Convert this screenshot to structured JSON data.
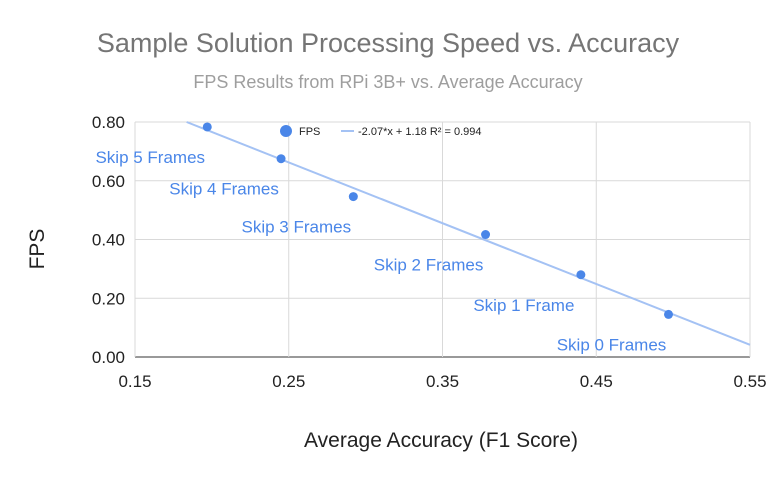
{
  "chart_data": {
    "type": "scatter",
    "title": "Sample Solution Processing Speed vs. Accuracy",
    "subtitle": "FPS Results from RPi 3B+ vs. Average Accuracy",
    "xlabel": "Average Accuracy (F1 Score)",
    "ylabel": "FPS",
    "xlim": [
      0.15,
      0.55
    ],
    "ylim": [
      0.0,
      0.8
    ],
    "x_ticks": [
      "0.15",
      "0.25",
      "0.35",
      "0.45",
      "0.55"
    ],
    "y_ticks": [
      "0.00",
      "0.20",
      "0.40",
      "0.60",
      "0.80"
    ],
    "grid": true,
    "legend_position": "top",
    "series": [
      {
        "name": "FPS",
        "color": "#4a86e8",
        "points": [
          {
            "x": 0.197,
            "y": 0.783,
            "label": "Skip 5 Frames"
          },
          {
            "x": 0.245,
            "y": 0.675,
            "label": "Skip 4 Frames"
          },
          {
            "x": 0.292,
            "y": 0.546,
            "label": "Skip 3 Frames"
          },
          {
            "x": 0.378,
            "y": 0.417,
            "label": "Skip 2 Frames"
          },
          {
            "x": 0.44,
            "y": 0.28,
            "label": "Skip 1 Frame"
          },
          {
            "x": 0.497,
            "y": 0.145,
            "label": "Skip 0 Frames"
          }
        ]
      }
    ],
    "trendline": {
      "name": "-2.07*x + 1.18 R² = 0.994",
      "slope": -2.07,
      "intercept": 1.18,
      "color": "#a4c2f4"
    }
  }
}
